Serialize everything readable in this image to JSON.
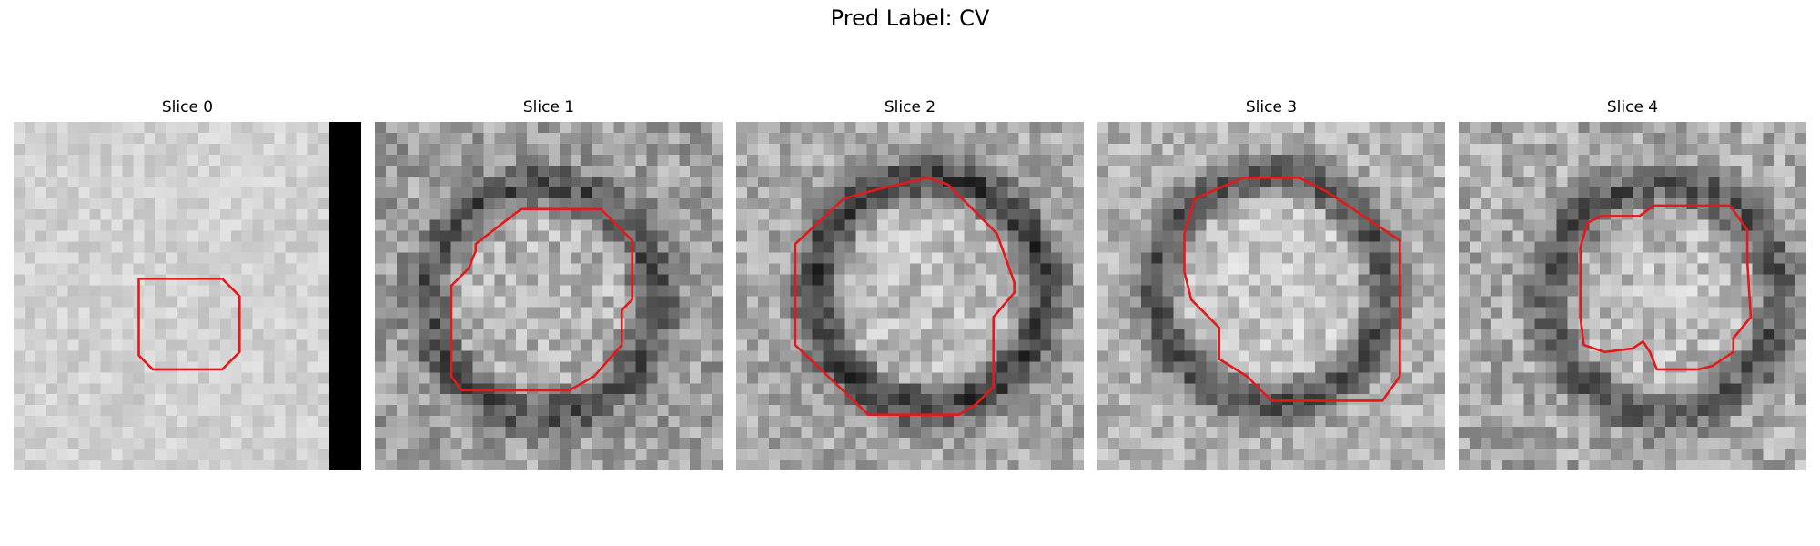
{
  "figure": {
    "suptitle": "Pred Label: CV",
    "contour_color": "#e31a1c",
    "panels": [
      {
        "title": "Slice 0",
        "base_gray": 0.82,
        "noise": 0.07,
        "ring": 0.0,
        "black_strip": true,
        "contour": [
          [
            0.36,
            0.45
          ],
          [
            0.42,
            0.45
          ],
          [
            0.6,
            0.45
          ],
          [
            0.65,
            0.5
          ],
          [
            0.65,
            0.66
          ],
          [
            0.6,
            0.71
          ],
          [
            0.4,
            0.71
          ],
          [
            0.36,
            0.67
          ]
        ]
      },
      {
        "title": "Slice 1",
        "base_gray": 0.62,
        "noise": 0.17,
        "ring": 0.3,
        "black_strip": false,
        "contour": [
          [
            0.29,
            0.35
          ],
          [
            0.42,
            0.25
          ],
          [
            0.65,
            0.25
          ],
          [
            0.74,
            0.34
          ],
          [
            0.74,
            0.51
          ],
          [
            0.71,
            0.54
          ],
          [
            0.71,
            0.64
          ],
          [
            0.63,
            0.73
          ],
          [
            0.56,
            0.77
          ],
          [
            0.25,
            0.77
          ],
          [
            0.22,
            0.73
          ],
          [
            0.22,
            0.47
          ],
          [
            0.27,
            0.42
          ],
          [
            0.29,
            0.37
          ]
        ]
      },
      {
        "title": "Slice 2",
        "base_gray": 0.66,
        "noise": 0.15,
        "ring": 0.42,
        "black_strip": false,
        "contour": [
          [
            0.17,
            0.35
          ],
          [
            0.31,
            0.22
          ],
          [
            0.42,
            0.19
          ],
          [
            0.55,
            0.16
          ],
          [
            0.61,
            0.18
          ],
          [
            0.75,
            0.32
          ],
          [
            0.8,
            0.46
          ],
          [
            0.8,
            0.49
          ],
          [
            0.74,
            0.56
          ],
          [
            0.74,
            0.76
          ],
          [
            0.69,
            0.81
          ],
          [
            0.64,
            0.84
          ],
          [
            0.38,
            0.84
          ],
          [
            0.17,
            0.64
          ]
        ]
      },
      {
        "title": "Slice 3",
        "base_gray": 0.7,
        "noise": 0.14,
        "ring": 0.38,
        "black_strip": false,
        "contour": [
          [
            0.28,
            0.22
          ],
          [
            0.35,
            0.19
          ],
          [
            0.42,
            0.16
          ],
          [
            0.58,
            0.16
          ],
          [
            0.66,
            0.2
          ],
          [
            0.87,
            0.34
          ],
          [
            0.87,
            0.73
          ],
          [
            0.82,
            0.8
          ],
          [
            0.75,
            0.8
          ],
          [
            0.5,
            0.8
          ],
          [
            0.43,
            0.73
          ],
          [
            0.35,
            0.68
          ],
          [
            0.35,
            0.59
          ],
          [
            0.27,
            0.51
          ],
          [
            0.25,
            0.43
          ],
          [
            0.25,
            0.32
          ]
        ]
      },
      {
        "title": "Slice 4",
        "base_gray": 0.66,
        "noise": 0.17,
        "ring": 0.32,
        "black_strip": false,
        "contour": [
          [
            0.37,
            0.29
          ],
          [
            0.41,
            0.27
          ],
          [
            0.52,
            0.27
          ],
          [
            0.56,
            0.24
          ],
          [
            0.78,
            0.24
          ],
          [
            0.83,
            0.31
          ],
          [
            0.83,
            0.4
          ],
          [
            0.84,
            0.56
          ],
          [
            0.79,
            0.62
          ],
          [
            0.79,
            0.66
          ],
          [
            0.73,
            0.7
          ],
          [
            0.69,
            0.71
          ],
          [
            0.57,
            0.71
          ],
          [
            0.55,
            0.66
          ],
          [
            0.53,
            0.63
          ],
          [
            0.5,
            0.65
          ],
          [
            0.42,
            0.66
          ],
          [
            0.36,
            0.64
          ],
          [
            0.35,
            0.56
          ],
          [
            0.35,
            0.36
          ]
        ]
      }
    ]
  }
}
